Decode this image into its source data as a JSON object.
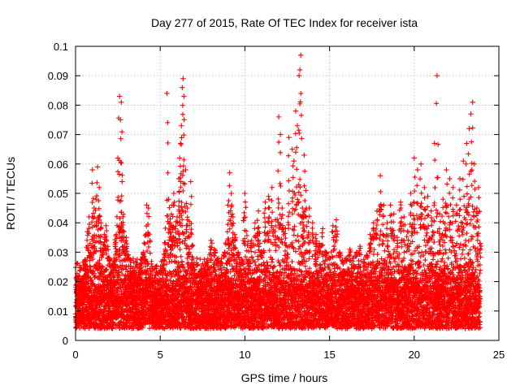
{
  "chart_data": {
    "type": "scatter",
    "title": "Day 277 of 2015, Rate Of TEC Index for receiver ista",
    "xlabel": "GPS time / hours",
    "ylabel": "ROTI / TECUs",
    "xlim": [
      0,
      25
    ],
    "ylim": [
      0,
      0.1
    ],
    "grid": true,
    "marker": "plus",
    "color": "#ff0000",
    "x_ticks": [
      "0",
      "5",
      "10",
      "15",
      "20",
      "25"
    ],
    "x_tick_values": [
      0,
      5,
      10,
      15,
      20,
      25
    ],
    "y_ticks": [
      "0",
      "0.01",
      "0.02",
      "0.03",
      "0.04",
      "0.05",
      "0.06",
      "0.07",
      "0.08",
      "0.09",
      "0.1"
    ],
    "y_tick_values": [
      0,
      0.01,
      0.02,
      0.03,
      0.04,
      0.05,
      0.06,
      0.07,
      0.08,
      0.09,
      0.1
    ],
    "series": [
      {
        "name": "ROTI",
        "points": [
          [
            0.0,
            0.009
          ],
          [
            0.1,
            0.011
          ],
          [
            0.2,
            0.008
          ],
          [
            0.3,
            0.014
          ],
          [
            0.4,
            0.012
          ],
          [
            0.5,
            0.018
          ],
          [
            0.6,
            0.025
          ],
          [
            0.7,
            0.037
          ],
          [
            0.8,
            0.042
          ],
          [
            0.9,
            0.03
          ],
          [
            1.0,
            0.058
          ],
          [
            1.1,
            0.045
          ],
          [
            1.2,
            0.048
          ],
          [
            1.3,
            0.059
          ],
          [
            1.4,
            0.052
          ],
          [
            1.5,
            0.04
          ],
          [
            1.6,
            0.031
          ],
          [
            1.7,
            0.036
          ],
          [
            1.8,
            0.039
          ],
          [
            1.9,
            0.028
          ],
          [
            2.0,
            0.027
          ],
          [
            2.1,
            0.02
          ],
          [
            2.2,
            0.019
          ],
          [
            2.3,
            0.024
          ],
          [
            2.4,
            0.036
          ],
          [
            2.5,
            0.062
          ],
          [
            2.6,
            0.083
          ],
          [
            2.65,
            0.075
          ],
          [
            2.7,
            0.081
          ],
          [
            2.75,
            0.054
          ],
          [
            2.8,
            0.042
          ],
          [
            2.9,
            0.032
          ],
          [
            3.0,
            0.035
          ],
          [
            3.1,
            0.028
          ],
          [
            3.2,
            0.022
          ],
          [
            3.3,
            0.018
          ],
          [
            3.4,
            0.016
          ],
          [
            3.5,
            0.015
          ],
          [
            3.6,
            0.021
          ],
          [
            3.7,
            0.019
          ],
          [
            3.8,
            0.017
          ],
          [
            3.9,
            0.024
          ],
          [
            4.0,
            0.03
          ],
          [
            4.1,
            0.027
          ],
          [
            4.2,
            0.046
          ],
          [
            4.3,
            0.045
          ],
          [
            4.4,
            0.012
          ],
          [
            4.5,
            0.01
          ],
          [
            4.6,
            0.008
          ],
          [
            4.7,
            0.009
          ],
          [
            4.8,
            0.011
          ],
          [
            4.9,
            0.01
          ],
          [
            5.0,
            0.012
          ],
          [
            5.1,
            0.013
          ],
          [
            5.2,
            0.024
          ],
          [
            5.3,
            0.031
          ],
          [
            5.4,
            0.084
          ],
          [
            5.5,
            0.048
          ],
          [
            5.6,
            0.04
          ],
          [
            5.7,
            0.046
          ],
          [
            5.8,
            0.05
          ],
          [
            5.9,
            0.038
          ],
          [
            6.0,
            0.042
          ],
          [
            6.1,
            0.055
          ],
          [
            6.15,
            0.062
          ],
          [
            6.2,
            0.067
          ],
          [
            6.25,
            0.073
          ],
          [
            6.3,
            0.086
          ],
          [
            6.35,
            0.089
          ],
          [
            6.4,
            0.083
          ],
          [
            6.5,
            0.058
          ],
          [
            6.6,
            0.045
          ],
          [
            6.7,
            0.03
          ],
          [
            6.8,
            0.054
          ],
          [
            6.9,
            0.024
          ],
          [
            7.0,
            0.021
          ],
          [
            7.2,
            0.018
          ],
          [
            7.4,
            0.02
          ],
          [
            7.6,
            0.022
          ],
          [
            7.8,
            0.025
          ],
          [
            8.0,
            0.034
          ],
          [
            8.2,
            0.031
          ],
          [
            8.4,
            0.027
          ],
          [
            8.6,
            0.024
          ],
          [
            8.8,
            0.03
          ],
          [
            9.0,
            0.046
          ],
          [
            9.1,
            0.057
          ],
          [
            9.2,
            0.05
          ],
          [
            9.3,
            0.042
          ],
          [
            9.4,
            0.036
          ],
          [
            9.6,
            0.03
          ],
          [
            9.8,
            0.026
          ],
          [
            10.0,
            0.05
          ],
          [
            10.2,
            0.026
          ],
          [
            10.4,
            0.034
          ],
          [
            10.6,
            0.04
          ],
          [
            10.8,
            0.044
          ],
          [
            11.0,
            0.03
          ],
          [
            11.2,
            0.047
          ],
          [
            11.4,
            0.049
          ],
          [
            11.6,
            0.052
          ],
          [
            11.8,
            0.041
          ],
          [
            12.0,
            0.076
          ],
          [
            12.1,
            0.07
          ],
          [
            12.2,
            0.045
          ],
          [
            12.4,
            0.038
          ],
          [
            12.6,
            0.069
          ],
          [
            12.8,
            0.065
          ],
          [
            12.9,
            0.061
          ],
          [
            13.0,
            0.078
          ],
          [
            13.1,
            0.073
          ],
          [
            13.2,
            0.09
          ],
          [
            13.25,
            0.092
          ],
          [
            13.3,
            0.097
          ],
          [
            13.4,
            0.045
          ],
          [
            13.5,
            0.063
          ],
          [
            13.6,
            0.051
          ],
          [
            13.8,
            0.045
          ],
          [
            14.0,
            0.04
          ],
          [
            14.2,
            0.036
          ],
          [
            14.4,
            0.033
          ],
          [
            14.6,
            0.038
          ],
          [
            14.8,
            0.03
          ],
          [
            15.0,
            0.028
          ],
          [
            15.2,
            0.039
          ],
          [
            15.4,
            0.041
          ],
          [
            15.6,
            0.03
          ],
          [
            15.8,
            0.026
          ],
          [
            16.0,
            0.027
          ],
          [
            16.2,
            0.031
          ],
          [
            16.4,
            0.028
          ],
          [
            16.6,
            0.03
          ],
          [
            16.8,
            0.032
          ],
          [
            17.0,
            0.025
          ],
          [
            17.2,
            0.029
          ],
          [
            17.4,
            0.036
          ],
          [
            17.6,
            0.04
          ],
          [
            17.8,
            0.044
          ],
          [
            18.0,
            0.056
          ],
          [
            18.2,
            0.046
          ],
          [
            18.4,
            0.04
          ],
          [
            18.6,
            0.046
          ],
          [
            18.8,
            0.043
          ],
          [
            19.0,
            0.035
          ],
          [
            19.2,
            0.047
          ],
          [
            19.4,
            0.042
          ],
          [
            19.6,
            0.037
          ],
          [
            19.8,
            0.05
          ],
          [
            20.0,
            0.062
          ],
          [
            20.2,
            0.058
          ],
          [
            20.4,
            0.06
          ],
          [
            20.6,
            0.052
          ],
          [
            20.8,
            0.049
          ],
          [
            21.0,
            0.044
          ],
          [
            21.2,
            0.067
          ],
          [
            21.35,
            0.09
          ],
          [
            21.5,
            0.043
          ],
          [
            21.7,
            0.048
          ],
          [
            21.9,
            0.058
          ],
          [
            22.1,
            0.055
          ],
          [
            22.3,
            0.052
          ],
          [
            22.5,
            0.046
          ],
          [
            22.7,
            0.055
          ],
          [
            22.9,
            0.061
          ],
          [
            23.1,
            0.067
          ],
          [
            23.25,
            0.072
          ],
          [
            23.35,
            0.077
          ],
          [
            23.45,
            0.081
          ],
          [
            23.55,
            0.06
          ],
          [
            23.7,
            0.045
          ],
          [
            23.8,
            0.052
          ],
          [
            23.9,
            0.033
          ]
        ],
        "baseline_band": [
          0.004,
          0.028
        ]
      }
    ]
  }
}
